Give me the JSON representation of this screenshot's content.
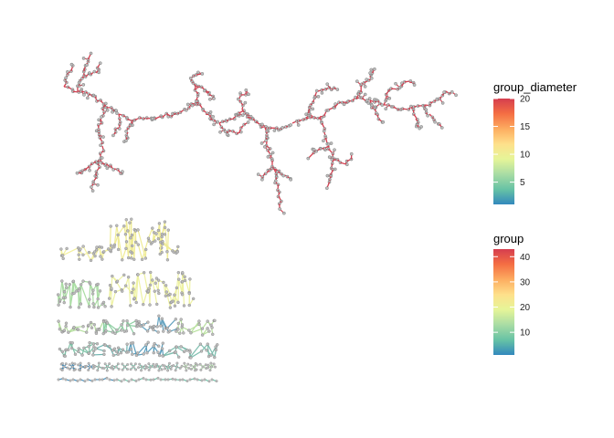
{
  "figure": {
    "type": "network-graph",
    "main_component": {
      "color_variable": "group_diameter",
      "color": "#d53e4f",
      "node_fill": "#bdbdbd"
    },
    "small_components": {
      "rows": 6,
      "color_by": "group"
    }
  },
  "legends": [
    {
      "title": "group_diameter",
      "ticks": [
        "5",
        "10",
        "15",
        "20"
      ],
      "tick_values": [
        5,
        10,
        15,
        20
      ],
      "range": [
        1,
        20
      ]
    },
    {
      "title": "group",
      "ticks": [
        "10",
        "20",
        "30",
        "40"
      ],
      "tick_values": [
        10,
        20,
        30,
        40
      ],
      "range": [
        1,
        43
      ]
    }
  ],
  "colors": {
    "scale": [
      "#3288bd",
      "#66c2a5",
      "#abdda4",
      "#e6f598",
      "#fee08b",
      "#fdae61",
      "#f46d43",
      "#d53e4f"
    ],
    "edge_main": "#d53e4f",
    "node_fill": "#bdbdbd"
  }
}
